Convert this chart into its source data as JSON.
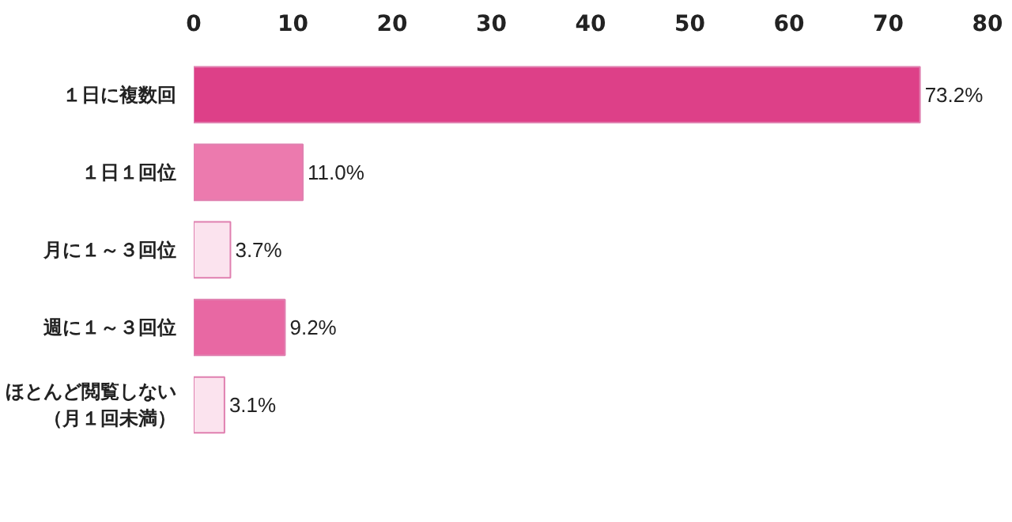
{
  "chart_data": {
    "type": "bar",
    "orientation": "horizontal",
    "categories": [
      "１日に複数回",
      "１日１回位",
      "月に１～３回位",
      "週に１～３回位",
      "ほとんど閲覧しない（月１回未満）"
    ],
    "values": [
      73.2,
      11.0,
      3.7,
      9.2,
      3.1
    ],
    "colors": [
      "#dd4088",
      "#ec7aae",
      "#fbe3ee",
      "#e868a3",
      "#fbe3ee"
    ],
    "value_labels": [
      "73.2%",
      "11.0%",
      "3.7%",
      "9.2%",
      "3.1%"
    ],
    "xlim": [
      0,
      80
    ],
    "xticks": [
      0,
      10,
      20,
      30,
      40,
      50,
      60,
      70,
      80
    ],
    "grid": false
  }
}
